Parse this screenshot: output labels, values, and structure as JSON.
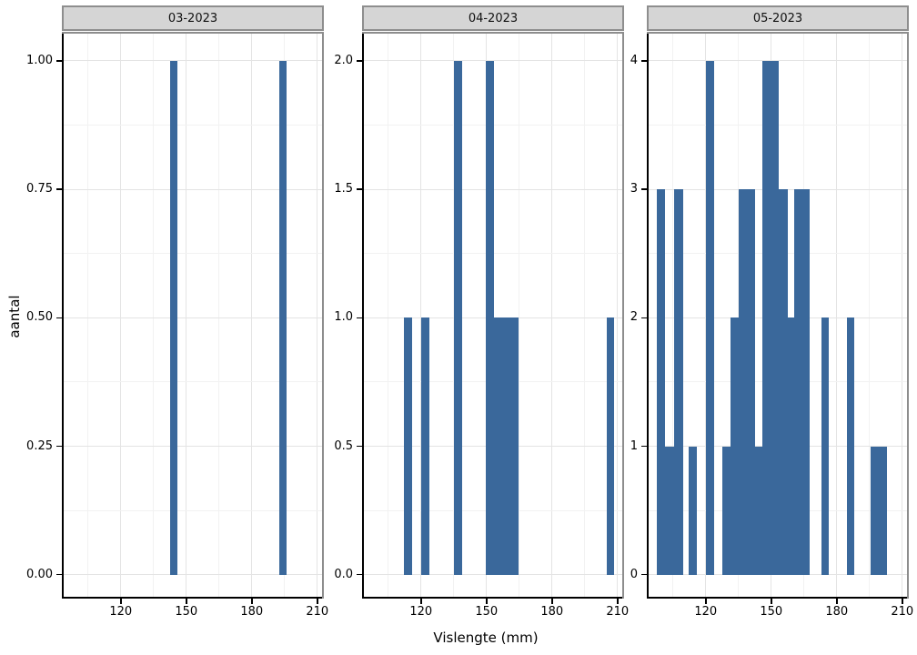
{
  "chart_data": {
    "type": "bar",
    "subtype": "faceted-histogram",
    "x_title": "Vislengte (mm)",
    "y_title": "aantal",
    "x_domain": [
      93,
      213
    ],
    "x_ticks": [
      120,
      150,
      180,
      210
    ],
    "x_minor_gridlines": [
      105,
      135,
      165,
      195
    ],
    "bar_color": "#3a689b",
    "strip_background": "#d5d5d5",
    "major_gridline_color": "#e4e4e4",
    "minor_gridline_color": "#f2f2f2",
    "legend": "none",
    "panels": [
      {
        "label": "03-2023",
        "y_max": 1,
        "y_ticks": [
          {
            "v": 0.0,
            "t": "0.00"
          },
          {
            "v": 0.25,
            "t": "0.25"
          },
          {
            "v": 0.5,
            "t": "0.50"
          },
          {
            "v": 0.75,
            "t": "0.75"
          },
          {
            "v": 1.0,
            "t": "1.00"
          }
        ],
        "y_minor": [
          0.125,
          0.375,
          0.625,
          0.875
        ],
        "bars": [
          {
            "x0": 142.5,
            "x1": 146.0,
            "n": 1
          },
          {
            "x0": 192.5,
            "x1": 196.0,
            "n": 1
          }
        ]
      },
      {
        "label": "04-2023",
        "y_max": 2,
        "y_ticks": [
          {
            "v": 0.0,
            "t": "0.0"
          },
          {
            "v": 0.5,
            "t": "0.5"
          },
          {
            "v": 1.0,
            "t": "1.0"
          },
          {
            "v": 1.5,
            "t": "1.5"
          },
          {
            "v": 2.0,
            "t": "2.0"
          }
        ],
        "y_minor": [
          0.25,
          0.75,
          1.25,
          1.75
        ],
        "bars": [
          {
            "x0": 112.0,
            "x1": 116.0,
            "n": 1
          },
          {
            "x0": 120.0,
            "x1": 124.0,
            "n": 1
          },
          {
            "x0": 135.0,
            "x1": 139.0,
            "n": 2
          },
          {
            "x0": 149.5,
            "x1": 153.5,
            "n": 2
          },
          {
            "x0": 153.5,
            "x1": 164.5,
            "n": 1
          },
          {
            "x0": 205.0,
            "x1": 208.5,
            "n": 1
          }
        ]
      },
      {
        "label": "05-2023",
        "y_max": 4,
        "y_ticks": [
          {
            "v": 0,
            "t": "0"
          },
          {
            "v": 1,
            "t": "1"
          },
          {
            "v": 2,
            "t": "2"
          },
          {
            "v": 3,
            "t": "3"
          },
          {
            "v": 4,
            "t": "4"
          }
        ],
        "y_minor": [
          0.5,
          1.5,
          2.5,
          3.5
        ],
        "bars": [
          {
            "x0": 97.5,
            "x1": 101.5,
            "n": 3
          },
          {
            "x0": 101.5,
            "x1": 105.5,
            "n": 1
          },
          {
            "x0": 105.5,
            "x1": 109.5,
            "n": 3
          },
          {
            "x0": 112.0,
            "x1": 116.0,
            "n": 1
          },
          {
            "x0": 120.0,
            "x1": 124.0,
            "n": 4
          },
          {
            "x0": 127.5,
            "x1": 131.5,
            "n": 1
          },
          {
            "x0": 131.5,
            "x1": 135.0,
            "n": 2
          },
          {
            "x0": 135.0,
            "x1": 142.5,
            "n": 3
          },
          {
            "x0": 142.5,
            "x1": 146.0,
            "n": 1
          },
          {
            "x0": 146.0,
            "x1": 153.5,
            "n": 4
          },
          {
            "x0": 153.5,
            "x1": 157.5,
            "n": 3
          },
          {
            "x0": 157.5,
            "x1": 160.5,
            "n": 2
          },
          {
            "x0": 160.5,
            "x1": 167.5,
            "n": 3
          },
          {
            "x0": 173.0,
            "x1": 176.5,
            "n": 2
          },
          {
            "x0": 184.5,
            "x1": 188.0,
            "n": 2
          },
          {
            "x0": 195.5,
            "x1": 203.0,
            "n": 1
          }
        ]
      }
    ]
  }
}
